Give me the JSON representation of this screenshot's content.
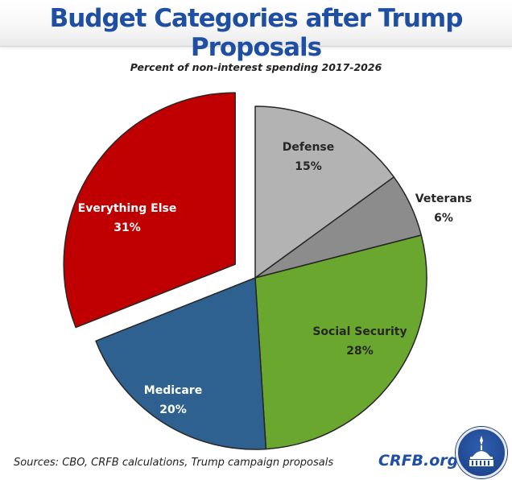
{
  "header": {
    "title": "Budget Categories after Trump Proposals"
  },
  "chart_data": {
    "type": "pie",
    "title": "Budget Categories after Trump Proposals",
    "subtitle": "Percent of non-interest spending 2017-2026",
    "start_angle": "12 o'clock, clockwise",
    "slices": [
      {
        "label": "Defense",
        "value": 15,
        "display": "15%",
        "color": "#b3b3b3",
        "text_color": "#262626",
        "exploded": false
      },
      {
        "label": "Veterans",
        "value": 6,
        "display": "6%",
        "color": "#8c8c8c",
        "text_color": "#262626",
        "exploded": false,
        "label_outside": true
      },
      {
        "label": "Social Security",
        "value": 28,
        "display": "28%",
        "color": "#6aa72e",
        "text_color": "#262626",
        "exploded": false
      },
      {
        "label": "Medicare",
        "value": 20,
        "display": "20%",
        "color": "#2e618f",
        "text_color": "#ffffff",
        "exploded": false
      },
      {
        "label": "Everything Else",
        "value": 31,
        "display": "31%",
        "color": "#c00000",
        "text_color": "#ffffff",
        "exploded": true
      }
    ]
  },
  "footer": {
    "source": "Sources: CBO, CRFB calculations, Trump campaign proposals",
    "brand": "CRFB.org",
    "logo_icon": "capitol-dome-seal-icon"
  }
}
